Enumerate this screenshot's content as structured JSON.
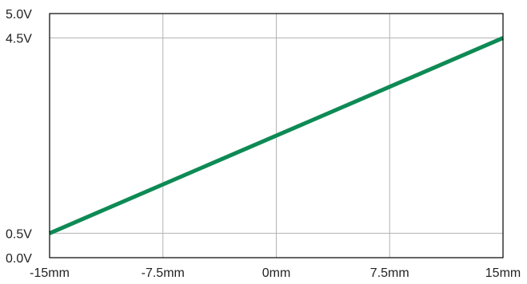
{
  "chart_data": {
    "type": "line",
    "x_ticks": [
      {
        "value": -15,
        "label": "-15mm"
      },
      {
        "value": -7.5,
        "label": "-7.5mm"
      },
      {
        "value": 0,
        "label": "0mm"
      },
      {
        "value": 7.5,
        "label": "7.5mm"
      },
      {
        "value": 15,
        "label": "15mm"
      }
    ],
    "y_ticks": [
      {
        "value": 0.0,
        "label": "0.0V"
      },
      {
        "value": 0.5,
        "label": "0.5V"
      },
      {
        "value": 4.5,
        "label": "4.5V"
      },
      {
        "value": 5.0,
        "label": "5.0V"
      }
    ],
    "xlim": [
      -15,
      15
    ],
    "ylim": [
      0,
      5
    ],
    "grid": true,
    "series": [
      {
        "x": [
          -15,
          15
        ],
        "y": [
          0.5,
          4.5
        ],
        "color": "#0e8a55"
      }
    ]
  }
}
